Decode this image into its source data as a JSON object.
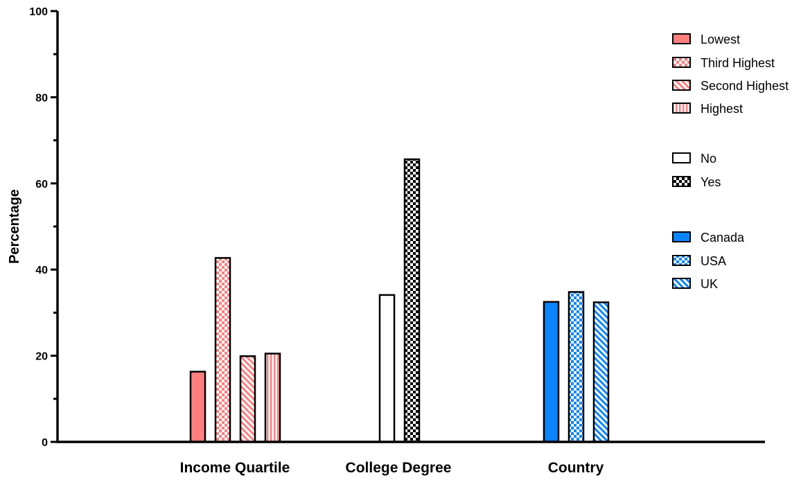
{
  "chart_data": {
    "type": "bar",
    "ylabel": "Percentage",
    "xlabel": "",
    "ylim": [
      0,
      100
    ],
    "yticks": [
      0,
      20,
      40,
      60,
      80,
      100
    ],
    "grid": false,
    "legend_position": "right",
    "groups": [
      {
        "label": "Income Quartile",
        "series": [
          {
            "name": "Lowest",
            "value": 16.3,
            "color": "#ff7f7f",
            "pattern": "solid"
          },
          {
            "name": "Third Highest",
            "value": 42.7,
            "color": "#ff7f7f",
            "pattern": "checker"
          },
          {
            "name": "Second Highest",
            "value": 19.9,
            "color": "#ff7f7f",
            "pattern": "diagonal"
          },
          {
            "name": "Highest",
            "value": 20.5,
            "color": "#ff7f7f",
            "pattern": "vertical"
          }
        ]
      },
      {
        "label": "College Degree",
        "series": [
          {
            "name": "No",
            "value": 34.1,
            "color": "#ffffff",
            "pattern": "solid"
          },
          {
            "name": "Yes",
            "value": 65.6,
            "color": "#000000",
            "pattern": "checker"
          }
        ]
      },
      {
        "label": "Country",
        "series": [
          {
            "name": "Canada",
            "value": 32.5,
            "color": "#0a84ff",
            "pattern": "solid"
          },
          {
            "name": "USA",
            "value": 34.8,
            "color": "#0a84ff",
            "pattern": "checker"
          },
          {
            "name": "UK",
            "value": 32.4,
            "color": "#0a84ff",
            "pattern": "diagonal"
          }
        ]
      }
    ]
  }
}
